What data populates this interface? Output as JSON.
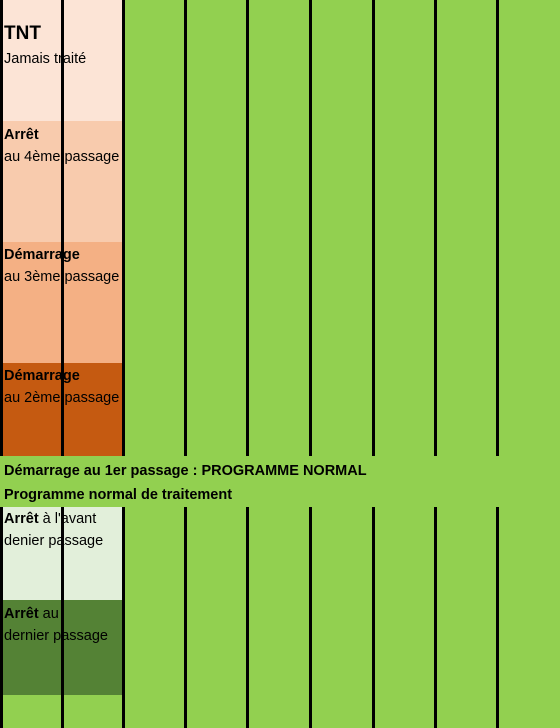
{
  "tnt": {
    "title": "TNT",
    "subtitle": "Jamais traité"
  },
  "stop4": {
    "title": "Arrêt",
    "subtitle": "au 4ème passage"
  },
  "start3": {
    "title": "Démarrage",
    "subtitle": "au 3ème passage"
  },
  "start2": {
    "title": "Démarrage",
    "subtitle": "au 2ème passage"
  },
  "start1": {
    "label": "Démarrage au 1er passage : PROGRAMME NORMAL"
  },
  "normal": {
    "label": "Programme normal de traitement"
  },
  "stop_prev": {
    "title": "Arrêt",
    "subtitle_inline": " à l'avant",
    "subtitle2": "denier passage"
  },
  "stop_last": {
    "title": "Arrêt",
    "subtitle_inline": " au",
    "subtitle2": "dernier passage"
  },
  "colors": {
    "field_green": "#92d050",
    "tnt": "#fce4d6",
    "stop4": "#f8cbad",
    "start3": "#f4b084",
    "start2": "#c55a11",
    "stop_prev": "#e2efda",
    "stop_last": "#548235"
  }
}
